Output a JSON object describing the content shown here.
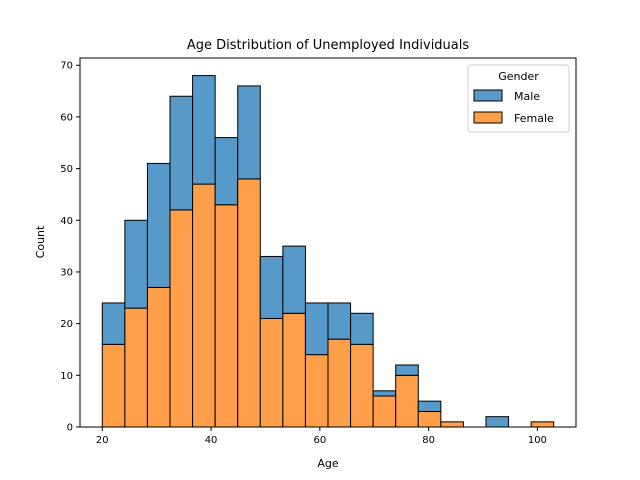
{
  "chart_data": {
    "type": "bar",
    "stacked": true,
    "title": "Age Distribution of Unemployed Individuals",
    "xlabel": "Age",
    "ylabel": "Count",
    "xlim": [
      15.9,
      107.1
    ],
    "ylim": [
      0,
      71.4
    ],
    "xticks": [
      20,
      40,
      60,
      80,
      100
    ],
    "yticks": [
      0,
      10,
      20,
      30,
      40,
      50,
      60,
      70
    ],
    "bins": [
      [
        20.0,
        24.15
      ],
      [
        24.15,
        28.3
      ],
      [
        28.3,
        32.45
      ],
      [
        32.45,
        36.6
      ],
      [
        36.6,
        40.75
      ],
      [
        40.75,
        44.9
      ],
      [
        44.9,
        49.05
      ],
      [
        49.05,
        53.2
      ],
      [
        53.2,
        57.35
      ],
      [
        57.35,
        61.5
      ],
      [
        61.5,
        65.65
      ],
      [
        65.65,
        69.8
      ],
      [
        69.8,
        73.95
      ],
      [
        73.95,
        78.1
      ],
      [
        78.1,
        82.25
      ],
      [
        82.25,
        86.4
      ],
      [
        86.4,
        90.55
      ],
      [
        90.55,
        94.7
      ],
      [
        94.7,
        98.85
      ],
      [
        98.85,
        103.0
      ]
    ],
    "series": [
      {
        "name": "Female",
        "color": "#ff9f4a",
        "values": [
          16,
          23,
          27,
          42,
          47,
          43,
          48,
          21,
          22,
          14,
          17,
          16,
          6,
          10,
          3,
          1,
          0,
          0,
          0,
          1
        ]
      },
      {
        "name": "Male",
        "color": "#5799c8",
        "values": [
          8,
          17,
          24,
          22,
          21,
          13,
          18,
          12,
          13,
          10,
          7,
          6,
          1,
          2,
          2,
          0,
          0,
          2,
          0,
          0
        ]
      }
    ],
    "legend": {
      "title": "Gender",
      "position": "top-right",
      "entries": [
        {
          "label": "Male",
          "color": "#5799c8"
        },
        {
          "label": "Female",
          "color": "#ff9f4a"
        }
      ]
    },
    "grid": false
  }
}
